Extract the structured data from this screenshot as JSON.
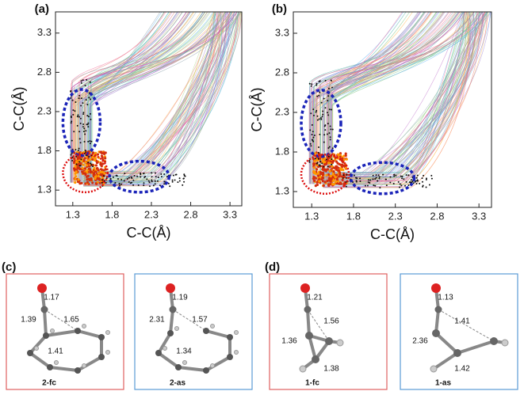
{
  "panels": [
    {
      "label": "(a)",
      "xlabel": "C-C(Å)",
      "ylabel": "C-C(Å)",
      "xlim": [
        1.08,
        3.45
      ],
      "ylim": [
        1.1,
        3.57
      ],
      "xticks": [
        1.3,
        1.8,
        2.3,
        2.8,
        3.3
      ],
      "yticks": [
        1.3,
        1.8,
        2.3,
        2.8,
        3.3
      ]
    },
    {
      "label": "(b)",
      "xlabel": "C-C(Å)",
      "ylabel": "C-C(Å)",
      "xlim": [
        1.08,
        3.45
      ],
      "ylim": [
        1.1,
        3.57
      ],
      "xticks": [
        1.3,
        1.8,
        2.3,
        2.8,
        3.3
      ],
      "yticks": [
        1.3,
        1.8,
        2.3,
        2.8,
        3.3
      ]
    }
  ],
  "molecule_panels": [
    {
      "label": "(c)",
      "structures": [
        {
          "name": "2-fc",
          "bonds": [
            1.17,
            1.39,
            1.65,
            1.41
          ]
        },
        {
          "name": "2-as",
          "bonds": [
            1.19,
            2.31,
            1.57,
            1.34
          ]
        }
      ]
    },
    {
      "label": "(d)",
      "structures": [
        {
          "name": "1-fc",
          "bonds": [
            1.21,
            1.36,
            1.56,
            1.38
          ]
        },
        {
          "name": "1-as",
          "bonds": [
            1.13,
            2.36,
            1.41,
            1.42
          ]
        }
      ]
    }
  ]
}
